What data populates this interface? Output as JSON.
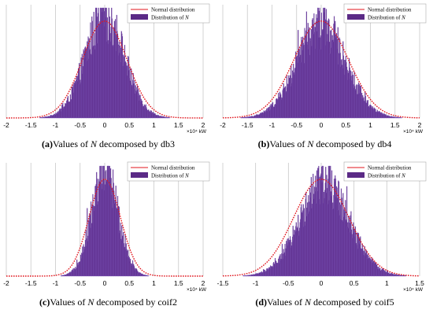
{
  "colors": {
    "bar": "#5b2a86",
    "bar_edge": "#7a52b8",
    "curve": "#e0161e",
    "grid": "#c8c8c8"
  },
  "legend": {
    "normal_label": "Normal distribution",
    "dist_label": "Distribution of ",
    "dist_var": "N"
  },
  "captions": [
    {
      "tag": "(a)",
      "text1": "Values of ",
      "var": "N",
      "text2": " decomposed by db3"
    },
    {
      "tag": "(b)",
      "text1": "Values of ",
      "var": "N",
      "text2": " decomposed by db4"
    },
    {
      "tag": "(c)",
      "text1": "Values of ",
      "var": "N",
      "text2": " decomposed by coif2"
    },
    {
      "tag": "(d)",
      "text1": "Values of ",
      "var": "N",
      "text2": " decomposed by coif5"
    }
  ],
  "chart_data": [
    {
      "type": "bar",
      "subtype": "histogram-with-normal-fit",
      "xlim": [
        -2,
        2
      ],
      "x_ticks": [
        "-2",
        "-1.5",
        "-1",
        "-0.5",
        "0",
        "0.5",
        "1",
        "1.5",
        "2"
      ],
      "x_unit": "×10⁴ kW",
      "grid": "vertical",
      "legend_position": "top-right",
      "series": [
        {
          "name": "Normal distribution",
          "kind": "curve",
          "mean": 0.0,
          "std": 0.45
        },
        {
          "name": "Distribution of N",
          "kind": "histogram",
          "mean": 0.0,
          "std": 0.4,
          "peak": 0.95
        }
      ]
    },
    {
      "type": "bar",
      "subtype": "histogram-with-normal-fit",
      "xlim": [
        -2,
        2
      ],
      "x_ticks": [
        "-2",
        "-1.5",
        "-1",
        "-0.5",
        "0",
        "0.5",
        "1",
        "1.5",
        "2"
      ],
      "x_unit": "×10⁴ kW",
      "grid": "vertical",
      "legend_position": "top-right",
      "series": [
        {
          "name": "Normal distribution",
          "kind": "curve",
          "mean": 0.0,
          "std": 0.55
        },
        {
          "name": "Distribution of N",
          "kind": "histogram",
          "mean": 0.0,
          "std": 0.5,
          "peak": 0.85
        }
      ]
    },
    {
      "type": "bar",
      "subtype": "histogram-with-normal-fit",
      "xlim": [
        -2,
        2
      ],
      "x_ticks": [
        "-2",
        "-1.5",
        "-1",
        "-0.5",
        "0",
        "0.5",
        "1",
        "1.5",
        "2"
      ],
      "x_unit": "×10⁴ kW",
      "grid": "vertical",
      "legend_position": "top-right",
      "series": [
        {
          "name": "Normal distribution",
          "kind": "curve",
          "mean": 0.0,
          "std": 0.32
        },
        {
          "name": "Distribution of N",
          "kind": "histogram",
          "mean": 0.0,
          "std": 0.27,
          "peak": 0.98
        }
      ]
    },
    {
      "type": "bar",
      "subtype": "histogram-with-normal-fit",
      "xlim": [
        -1.5,
        1.5
      ],
      "x_ticks": [
        "-1.5",
        "-1",
        "-0.5",
        "0",
        "0.5",
        "1",
        "1.5"
      ],
      "x_unit": "×10⁴ kW",
      "grid": "vertical",
      "legend_position": "top-right",
      "series": [
        {
          "name": "Normal distribution",
          "kind": "curve",
          "mean": 0.0,
          "std": 0.42
        },
        {
          "name": "Distribution of N",
          "kind": "histogram",
          "mean": 0.05,
          "std": 0.38,
          "peak": 0.85
        }
      ]
    }
  ]
}
